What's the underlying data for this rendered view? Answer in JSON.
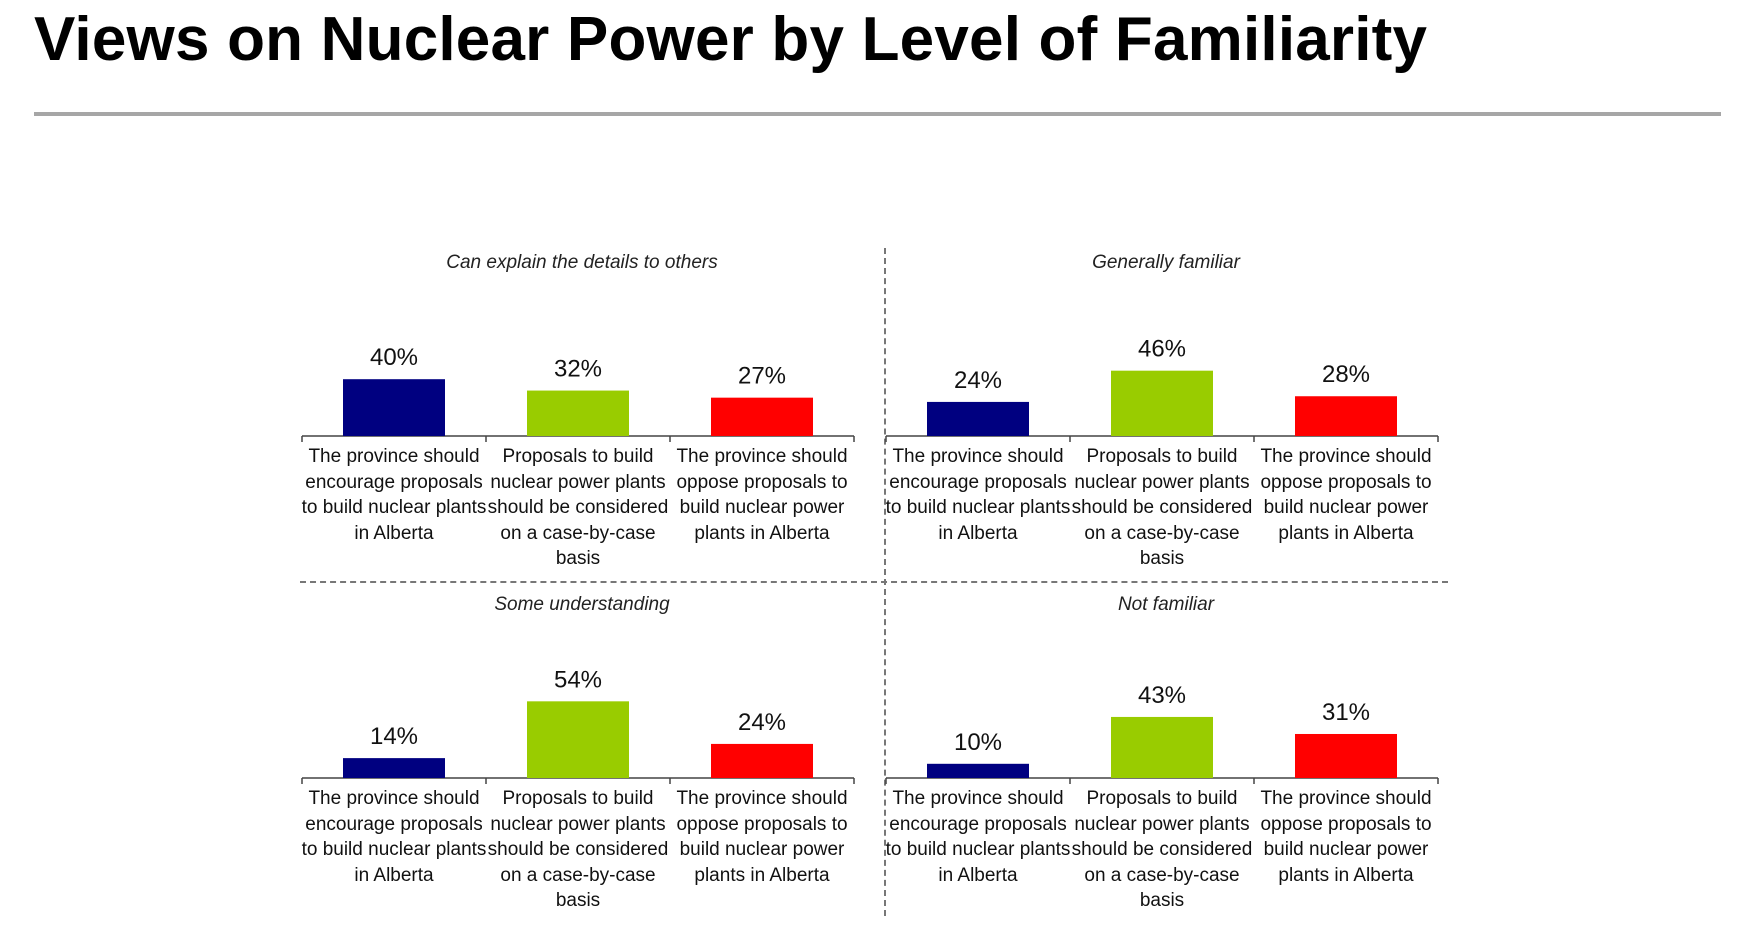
{
  "title": "Views on Nuclear Power by Level of Familiarity",
  "colors": {
    "encourage": "#000080",
    "case_by_case": "#99cc00",
    "oppose": "#ff0000",
    "rule": "#a6a6a6"
  },
  "chart_data": [
    {
      "type": "bar",
      "title": "Can explain the details to others",
      "categories": [
        "The province should encourage proposals to build nuclear plants in Alberta",
        "Proposals to build nuclear power plants should be considered on a case-by-case basis",
        "The province should oppose proposals to build nuclear power plants in Alberta"
      ],
      "values": [
        40,
        32,
        27
      ],
      "value_labels": [
        "40%",
        "32%",
        "27%"
      ],
      "ylim": [
        0,
        100
      ]
    },
    {
      "type": "bar",
      "title": "Generally familiar",
      "categories": [
        "The province should encourage proposals to build nuclear plants in Alberta",
        "Proposals to build nuclear power plants should be considered on a case-by-case basis",
        "The province should oppose proposals to build nuclear power plants in Alberta"
      ],
      "values": [
        24,
        46,
        28
      ],
      "value_labels": [
        "24%",
        "46%",
        "28%"
      ],
      "ylim": [
        0,
        100
      ]
    },
    {
      "type": "bar",
      "title": "Some understanding",
      "categories": [
        "The province should encourage proposals to build nuclear plants in Alberta",
        "Proposals to build nuclear power plants should be considered on a case-by-case basis",
        "The province should oppose proposals to build nuclear power plants in Alberta"
      ],
      "values": [
        14,
        54,
        24
      ],
      "value_labels": [
        "14%",
        "54%",
        "24%"
      ],
      "ylim": [
        0,
        100
      ]
    },
    {
      "type": "bar",
      "title": "Not familiar",
      "categories": [
        "The province should encourage proposals to build nuclear plants in Alberta",
        "Proposals to build nuclear power plants should be considered on a case-by-case basis",
        "The province should oppose proposals to build nuclear power plants in Alberta"
      ],
      "values": [
        10,
        43,
        31
      ],
      "value_labels": [
        "10%",
        "43%",
        "31%"
      ],
      "ylim": [
        0,
        100
      ]
    }
  ]
}
